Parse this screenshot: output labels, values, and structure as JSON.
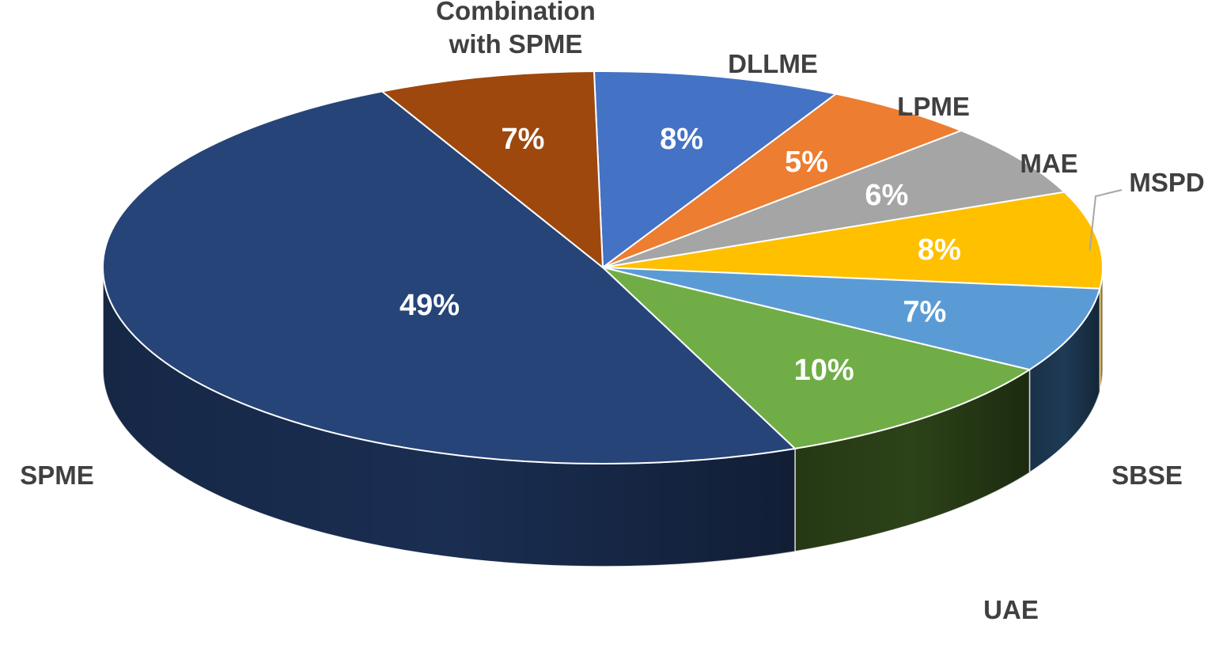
{
  "chart_data": {
    "type": "pie",
    "title": "",
    "style": "3d",
    "slices": [
      {
        "label": "DLLME",
        "value": 8,
        "display": "8%",
        "color": "#4472C4",
        "side_color": "#2F5597"
      },
      {
        "label": "LPME",
        "value": 5,
        "display": "5%",
        "color": "#ED7D31",
        "side_color": "#A85A22"
      },
      {
        "label": "MAE",
        "value": 6,
        "display": "6%",
        "color": "#A5A5A5",
        "side_color": "#757575"
      },
      {
        "label": "MSPD",
        "value": 8,
        "display": "8%",
        "color": "#FFC000",
        "side_color": "#B58800"
      },
      {
        "label": "SBSE",
        "value": 7,
        "display": "7%",
        "color": "#5B9BD5",
        "side_color": "#1E3A56"
      },
      {
        "label": "UAE",
        "value": 10,
        "display": "10%",
        "color": "#70AD47",
        "side_color": "#2C4218"
      },
      {
        "label": "SPME",
        "value": 49,
        "display": "49%",
        "color": "#264478",
        "side_color": "#1A2E52"
      },
      {
        "label": "Combination\nwith SPME",
        "value": 7,
        "display": "7%",
        "color": "#9E480E",
        "side_color": "#6B3009"
      }
    ]
  }
}
